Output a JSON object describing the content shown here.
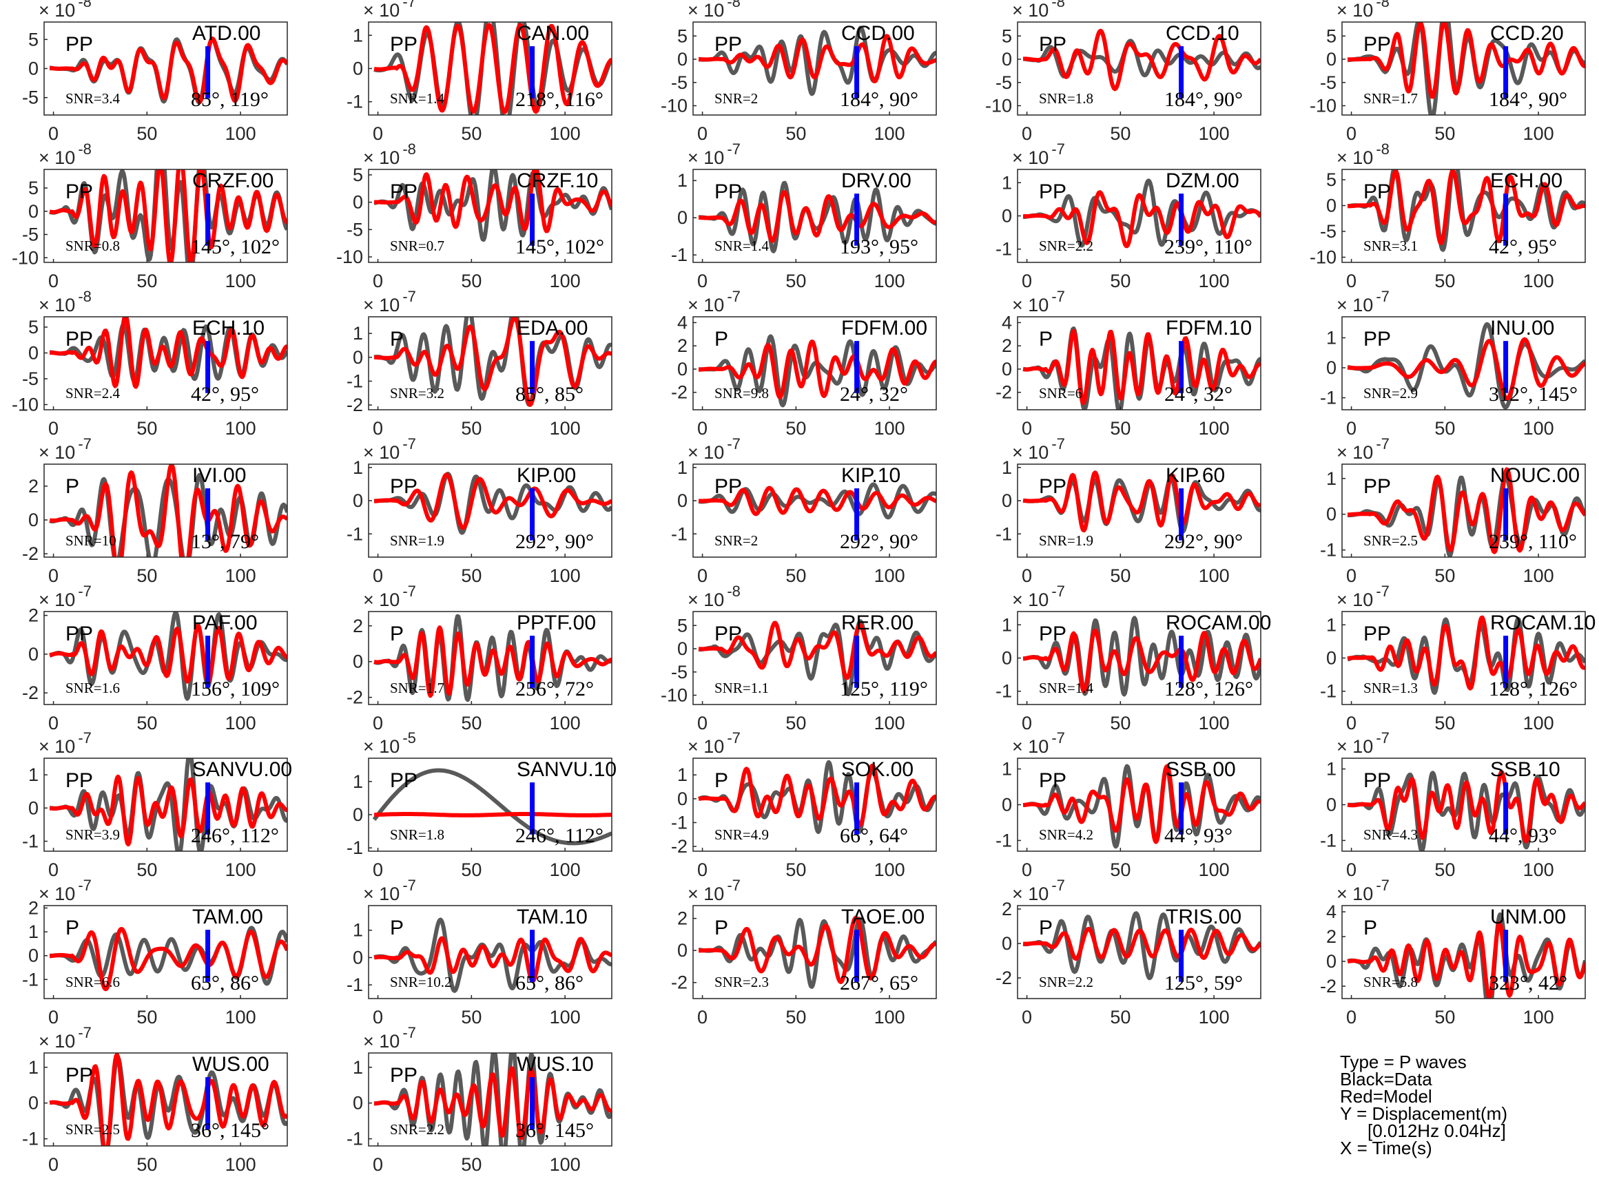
{
  "chart_data": {
    "type": "line",
    "x_ticks": [
      0,
      50,
      100
    ],
    "xlim": [
      -5,
      125
    ],
    "series_styles": {
      "data": {
        "color": "#595959"
      },
      "model": {
        "color": "#ff0000"
      },
      "marker": {
        "color": "#0000ff"
      }
    },
    "legend": {
      "type": "Type = P waves",
      "data": "Black=Data",
      "model": "Red=Model",
      "y": "Y = Displacement(m)",
      "band": "[0.012Hz 0.04Hz]",
      "x": "X = Time(s)"
    },
    "panels": [
      {
        "station": "ATD.00",
        "phase": "PP",
        "snr": "SNR=3.4",
        "angles": "85°, 119°",
        "exp": "-8",
        "yticks": [
          "5",
          "0",
          "-5"
        ],
        "ylim": [
          -8,
          8
        ],
        "amp": 6
      },
      {
        "station": "CAN.00",
        "phase": "PP",
        "snr": "SNR=1.4",
        "angles": "218°, 116°",
        "exp": "-7",
        "yticks": [
          "1",
          "0",
          "-1"
        ],
        "ylim": [
          -1.4,
          1.4
        ],
        "amp": 1
      },
      {
        "station": "CCD.00",
        "phase": "PP",
        "snr": "SNR=2",
        "angles": "184°, 90°",
        "exp": "-8",
        "yticks": [
          "5",
          "0",
          "-5",
          "-10"
        ],
        "ylim": [
          -12,
          8
        ],
        "amp": 7
      },
      {
        "station": "CCD.10",
        "phase": "PP",
        "snr": "SNR=1.8",
        "angles": "184°, 90°",
        "exp": "-8",
        "yticks": [
          "5",
          "0",
          "-5",
          "-10"
        ],
        "ylim": [
          -12,
          8
        ],
        "amp": 7
      },
      {
        "station": "CCD.20",
        "phase": "PP",
        "snr": "SNR=1.7",
        "angles": "184°, 90°",
        "exp": "-8",
        "yticks": [
          "5",
          "0",
          "-5",
          "-10"
        ],
        "ylim": [
          -12,
          8
        ],
        "amp": 7
      },
      {
        "station": "CRZF.00",
        "phase": "PP",
        "snr": "SNR=0.8",
        "angles": "145°, 102°",
        "exp": "-8",
        "yticks": [
          "5",
          "0",
          "-5",
          "-10"
        ],
        "ylim": [
          -11,
          9
        ],
        "amp": 8
      },
      {
        "station": "CRZF.10",
        "phase": "PP",
        "snr": "SNR=0.7",
        "angles": "145°, 102°",
        "exp": "-8",
        "yticks": [
          "5",
          "0",
          "-5",
          "-10"
        ],
        "ylim": [
          -11,
          6
        ],
        "amp": 6
      },
      {
        "station": "DRV.00",
        "phase": "PP",
        "snr": "SNR=1.4",
        "angles": "193°, 95°",
        "exp": "-7",
        "yticks": [
          "1",
          "0",
          "-1"
        ],
        "ylim": [
          -1.2,
          1.3
        ],
        "amp": 0.7
      },
      {
        "station": "DZM.00",
        "phase": "PP",
        "snr": "SNR=2.2",
        "angles": "239°, 110°",
        "exp": "-7",
        "yticks": [
          "1",
          "0",
          "-1"
        ],
        "ylim": [
          -1.4,
          1.4
        ],
        "amp": 1
      },
      {
        "station": "ECH.00",
        "phase": "PP",
        "snr": "SNR=3.1",
        "angles": "42°, 95°",
        "exp": "-8",
        "yticks": [
          "5",
          "0",
          "-5",
          "-10"
        ],
        "ylim": [
          -11,
          7
        ],
        "amp": 6
      },
      {
        "station": "ECH.10",
        "phase": "PP",
        "snr": "SNR=2.4",
        "angles": "42°, 95°",
        "exp": "-8",
        "yticks": [
          "5",
          "0",
          "-5",
          "-10"
        ],
        "ylim": [
          -11,
          7
        ],
        "amp": 6
      },
      {
        "station": "EDA.00",
        "phase": "P",
        "snr": "SNR=3.2",
        "angles": "85°, 85°",
        "exp": "-7",
        "yticks": [
          "1",
          "0",
          "-1",
          "-2"
        ],
        "ylim": [
          -2.2,
          1.7
        ],
        "amp": 1.4
      },
      {
        "station": "FDFM.00",
        "phase": "P",
        "snr": "SNR=9.8",
        "angles": "24°, 32°",
        "exp": "-7",
        "yticks": [
          "4",
          "2",
          "0",
          "-2"
        ],
        "ylim": [
          -3.5,
          4.5
        ],
        "amp": 2.5
      },
      {
        "station": "FDFM.10",
        "phase": "P",
        "snr": "SNR=6",
        "angles": "24°, 32°",
        "exp": "-7",
        "yticks": [
          "4",
          "2",
          "0",
          "-2"
        ],
        "ylim": [
          -3.5,
          4.5
        ],
        "amp": 2.5
      },
      {
        "station": "INU.00",
        "phase": "PP",
        "snr": "SNR=2.9",
        "angles": "312°, 145°",
        "exp": "-7",
        "yticks": [
          "1",
          "0",
          "-1"
        ],
        "ylim": [
          -1.4,
          1.7
        ],
        "amp": 1.1
      },
      {
        "station": "IVI.00",
        "phase": "P",
        "snr": "SNR=10",
        "angles": "13°, 79°",
        "exp": "-7",
        "yticks": [
          "2",
          "0",
          "-2"
        ],
        "ylim": [
          -2.2,
          3.3
        ],
        "amp": 2.8
      },
      {
        "station": "KIP.00",
        "phase": "PP",
        "snr": "SNR=1.9",
        "angles": "292°, 90°",
        "exp": "-7",
        "yticks": [
          "1",
          "0",
          "-1"
        ],
        "ylim": [
          -1.7,
          1.1
        ],
        "amp": 0.8
      },
      {
        "station": "KIP.10",
        "phase": "PP",
        "snr": "SNR=2",
        "angles": "292°, 90°",
        "exp": "-7",
        "yticks": [
          "1",
          "0",
          "-1"
        ],
        "ylim": [
          -1.7,
          1.1
        ],
        "amp": 0.8
      },
      {
        "station": "KIP.60",
        "phase": "PP",
        "snr": "SNR=1.9",
        "angles": "292°, 90°",
        "exp": "-7",
        "yticks": [
          "1",
          "0",
          "-1"
        ],
        "ylim": [
          -1.7,
          1.1
        ],
        "amp": 0.8
      },
      {
        "station": "NOUC.00",
        "phase": "PP",
        "snr": "SNR=2.5",
        "angles": "239°, 110°",
        "exp": "-7",
        "yticks": [
          "1",
          "0",
          "-1"
        ],
        "ylim": [
          -1.2,
          1.4
        ],
        "amp": 0.9
      },
      {
        "station": "PAF.00",
        "phase": "PP",
        "snr": "SNR=1.6",
        "angles": "156°, 109°",
        "exp": "-7",
        "yticks": [
          "2",
          "0",
          "-2"
        ],
        "ylim": [
          -2.6,
          2.2
        ],
        "amp": 2
      },
      {
        "station": "PPTF.00",
        "phase": "P",
        "snr": "SNR=1.7",
        "angles": "256°, 72°",
        "exp": "-7",
        "yticks": [
          "2",
          "0",
          "-2"
        ],
        "ylim": [
          -2.4,
          2.8
        ],
        "amp": 1.9
      },
      {
        "station": "RER.00",
        "phase": "PP",
        "snr": "SNR=1.1",
        "angles": "125°, 119°",
        "exp": "-8",
        "yticks": [
          "5",
          "0",
          "-5",
          "-10"
        ],
        "ylim": [
          -12,
          8
        ],
        "amp": 7
      },
      {
        "station": "ROCAM.00",
        "phase": "PP",
        "snr": "SNR=1.4",
        "angles": "128°, 126°",
        "exp": "-7",
        "yticks": [
          "1",
          "0",
          "-1"
        ],
        "ylim": [
          -1.4,
          1.4
        ],
        "amp": 1.1
      },
      {
        "station": "ROCAM.10",
        "phase": "PP",
        "snr": "SNR=1.3",
        "angles": "128°, 126°",
        "exp": "-7",
        "yticks": [
          "1",
          "0",
          "-1"
        ],
        "ylim": [
          -1.4,
          1.4
        ],
        "amp": 1.1
      },
      {
        "station": "SANVU.00",
        "phase": "PP",
        "snr": "SNR=3.9",
        "angles": "246°, 112°",
        "exp": "-7",
        "yticks": [
          "1",
          "0",
          "-1"
        ],
        "ylim": [
          -1.3,
          1.5
        ],
        "amp": 1.1
      },
      {
        "station": "SANVU.10",
        "phase": "PP",
        "snr": "SNR=1.8",
        "angles": "246°, 112°",
        "exp": "-5",
        "yticks": [
          "1",
          "0",
          "-1"
        ],
        "ylim": [
          -1.1,
          1.7
        ],
        "amp": 1.5,
        "special": "longperiod"
      },
      {
        "station": "SOK.00",
        "phase": "P",
        "snr": "SNR=4.9",
        "angles": "66°, 64°",
        "exp": "-7",
        "yticks": [
          "1",
          "0",
          "-1",
          "-2"
        ],
        "ylim": [
          -2.2,
          1.7
        ],
        "amp": 1.5
      },
      {
        "station": "SSB.00",
        "phase": "PP",
        "snr": "SNR=4.2",
        "angles": "44°, 93°",
        "exp": "-7",
        "yticks": [
          "1",
          "0",
          "-1"
        ],
        "ylim": [
          -1.3,
          1.3
        ],
        "amp": 0.9
      },
      {
        "station": "SSB.10",
        "phase": "PP",
        "snr": "SNR=4.3",
        "angles": "44°, 93°",
        "exp": "-7",
        "yticks": [
          "1",
          "0",
          "-1"
        ],
        "ylim": [
          -1.3,
          1.3
        ],
        "amp": 0.9
      },
      {
        "station": "TAM.00",
        "phase": "P",
        "snr": "SNR=6.6",
        "angles": "65°, 86°",
        "exp": "-7",
        "yticks": [
          "2",
          "1",
          "0",
          "-1"
        ],
        "ylim": [
          -1.8,
          2.1
        ],
        "amp": 1.6
      },
      {
        "station": "TAM.10",
        "phase": "P",
        "snr": "SNR=10.2",
        "angles": "65°, 86°",
        "exp": "-7",
        "yticks": [
          "1",
          "0",
          "-1"
        ],
        "ylim": [
          -1.5,
          1.9
        ],
        "amp": 1.4
      },
      {
        "station": "TAOE.00",
        "phase": "P",
        "snr": "SNR=2.3",
        "angles": "267°, 65°",
        "exp": "-7",
        "yticks": [
          "2",
          "0",
          "-2"
        ],
        "ylim": [
          -3,
          2.8
        ],
        "amp": 2
      },
      {
        "station": "TRIS.00",
        "phase": "P",
        "snr": "SNR=2.2",
        "angles": "125°, 59°",
        "exp": "-7",
        "yticks": [
          "2",
          "0",
          "-2"
        ],
        "ylim": [
          -3.2,
          2.2
        ],
        "amp": 1.7
      },
      {
        "station": "UNM.00",
        "phase": "P",
        "snr": "SNR=5.8",
        "angles": "323°, 42°",
        "exp": "-7",
        "yticks": [
          "4",
          "2",
          "0",
          "-2"
        ],
        "ylim": [
          -3,
          4.5
        ],
        "amp": 3.2
      },
      {
        "station": "WUS.00",
        "phase": "PP",
        "snr": "SNR=2.5",
        "angles": "36°, 145°",
        "exp": "-7",
        "yticks": [
          "1",
          "0",
          "-1"
        ],
        "ylim": [
          -1.2,
          1.4
        ],
        "amp": 1.2
      },
      {
        "station": "WUS.10",
        "phase": "PP",
        "snr": "SNR=2.2",
        "angles": "36°, 145°",
        "exp": "-7",
        "yticks": [
          "1",
          "0",
          "-1"
        ],
        "ylim": [
          -1.2,
          1.4
        ],
        "amp": 1.2
      }
    ]
  }
}
